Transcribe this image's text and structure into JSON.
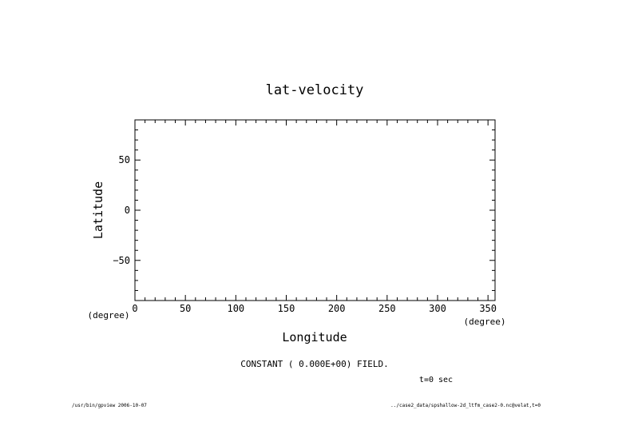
{
  "chart_data": {
    "type": "line",
    "title": "lat-velocity",
    "xlabel": "Longitude",
    "ylabel": "Latitude",
    "xunit": "(degree)",
    "yunit": "(degree)",
    "xlim": [
      0,
      357
    ],
    "ylim": [
      -90,
      90
    ],
    "xticks": [
      0,
      50,
      100,
      150,
      200,
      250,
      300,
      350
    ],
    "yticks": [
      -50,
      0,
      50
    ],
    "minor_x_step": 10,
    "minor_y_step": 10,
    "grid": false,
    "series": [],
    "annotation": "CONSTANT ( 0.000E+00) FIELD.",
    "time_label": "t=0 sec",
    "footer_left": "/usr/bin/gpview  2006-10-07",
    "footer_right": "../case2_data/spshallow-2d_ltfm_case2-0.nc@velat,t=0"
  },
  "colors": {
    "background": "#ffffff",
    "ink": "#000000"
  }
}
